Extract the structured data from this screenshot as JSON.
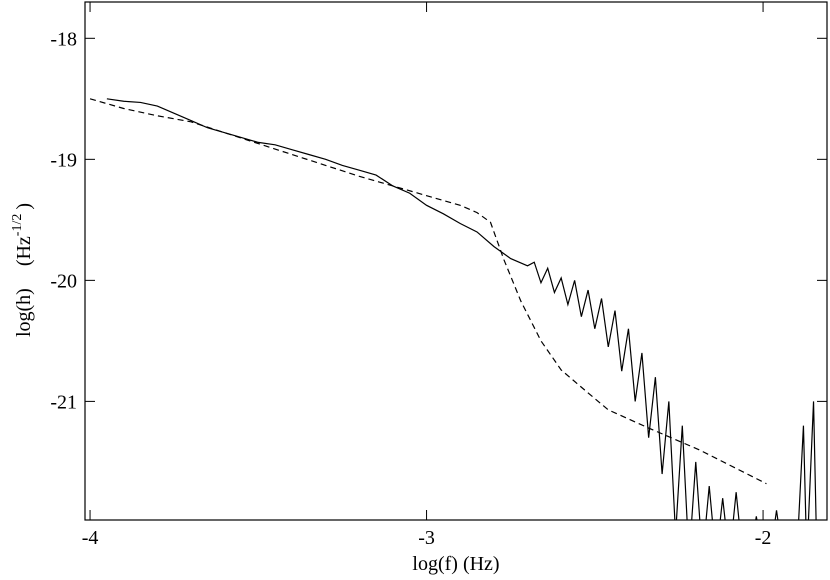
{
  "chart_data": {
    "type": "line",
    "x_label": "log(f) (Hz)",
    "y_label_parts": [
      "log(h)",
      "(Hz",
      "-1/2",
      ")"
    ],
    "xlim": [
      -4.015,
      -1.81
    ],
    "ylim": [
      -21.98,
      -17.7
    ],
    "xticks": [
      -4,
      -3,
      -2
    ],
    "yticks": [
      -18,
      -19,
      -20,
      -21
    ],
    "grid": false,
    "series": [
      {
        "color": "#000000",
        "style": "solid",
        "x": [
          -3.95,
          -3.9,
          -3.85,
          -3.8,
          -3.75,
          -3.7,
          -3.65,
          -3.6,
          -3.55,
          -3.5,
          -3.45,
          -3.4,
          -3.35,
          -3.3,
          -3.25,
          -3.2,
          -3.15,
          -3.1,
          -3.05,
          -3.0,
          -2.95,
          -2.9,
          -2.85,
          -2.8,
          -2.75,
          -2.7,
          -2.68,
          -2.66,
          -2.64,
          -2.62,
          -2.6,
          -2.58,
          -2.56,
          -2.54,
          -2.52,
          -2.5,
          -2.48,
          -2.46,
          -2.44,
          -2.42,
          -2.4,
          -2.38,
          -2.36,
          -2.34,
          -2.32,
          -2.3,
          -2.28,
          -2.26,
          -2.24,
          -2.22,
          -2.2,
          -2.18,
          -2.16,
          -2.14,
          -2.12,
          -2.1,
          -2.08,
          -2.06,
          -2.04,
          -2.02,
          -2.0,
          -1.98,
          -1.96,
          -1.94,
          -1.92,
          -1.9,
          -1.88,
          -1.87,
          -1.85,
          -1.84
        ],
        "values": [
          -18.5,
          -18.52,
          -18.53,
          -18.56,
          -18.62,
          -18.68,
          -18.74,
          -18.78,
          -18.82,
          -18.86,
          -18.88,
          -18.92,
          -18.96,
          -19.0,
          -19.05,
          -19.09,
          -19.13,
          -19.22,
          -19.28,
          -19.38,
          -19.45,
          -19.53,
          -19.6,
          -19.72,
          -19.82,
          -19.88,
          -19.85,
          -20.02,
          -19.9,
          -20.1,
          -19.98,
          -20.2,
          -20.0,
          -20.3,
          -20.08,
          -20.4,
          -20.15,
          -20.55,
          -20.25,
          -20.75,
          -20.4,
          -21.0,
          -20.6,
          -21.3,
          -20.8,
          -21.6,
          -21.0,
          -22.1,
          -21.2,
          -22.3,
          -21.5,
          -22.3,
          -21.7,
          -22.3,
          -21.8,
          -22.3,
          -21.75,
          -22.3,
          -22.3,
          -21.95,
          -22.3,
          -22.3,
          -21.9,
          -22.3,
          -22.3,
          -22.3,
          -21.2,
          -22.3,
          -21.0,
          -22.3
        ]
      },
      {
        "color": "#000000",
        "style": "dashed",
        "x": [
          -4.0,
          -3.9,
          -3.8,
          -3.7,
          -3.6,
          -3.5,
          -3.4,
          -3.3,
          -3.2,
          -3.1,
          -3.0,
          -2.9,
          -2.85,
          -2.81,
          -2.77,
          -2.72,
          -2.66,
          -2.6,
          -2.52,
          -2.46,
          -2.34,
          -2.19,
          -1.99
        ],
        "values": [
          -18.5,
          -18.58,
          -18.64,
          -18.69,
          -18.78,
          -18.87,
          -18.96,
          -19.05,
          -19.14,
          -19.22,
          -19.3,
          -19.38,
          -19.44,
          -19.52,
          -19.83,
          -20.17,
          -20.5,
          -20.74,
          -20.93,
          -21.07,
          -21.22,
          -21.4,
          -21.68
        ]
      }
    ]
  }
}
